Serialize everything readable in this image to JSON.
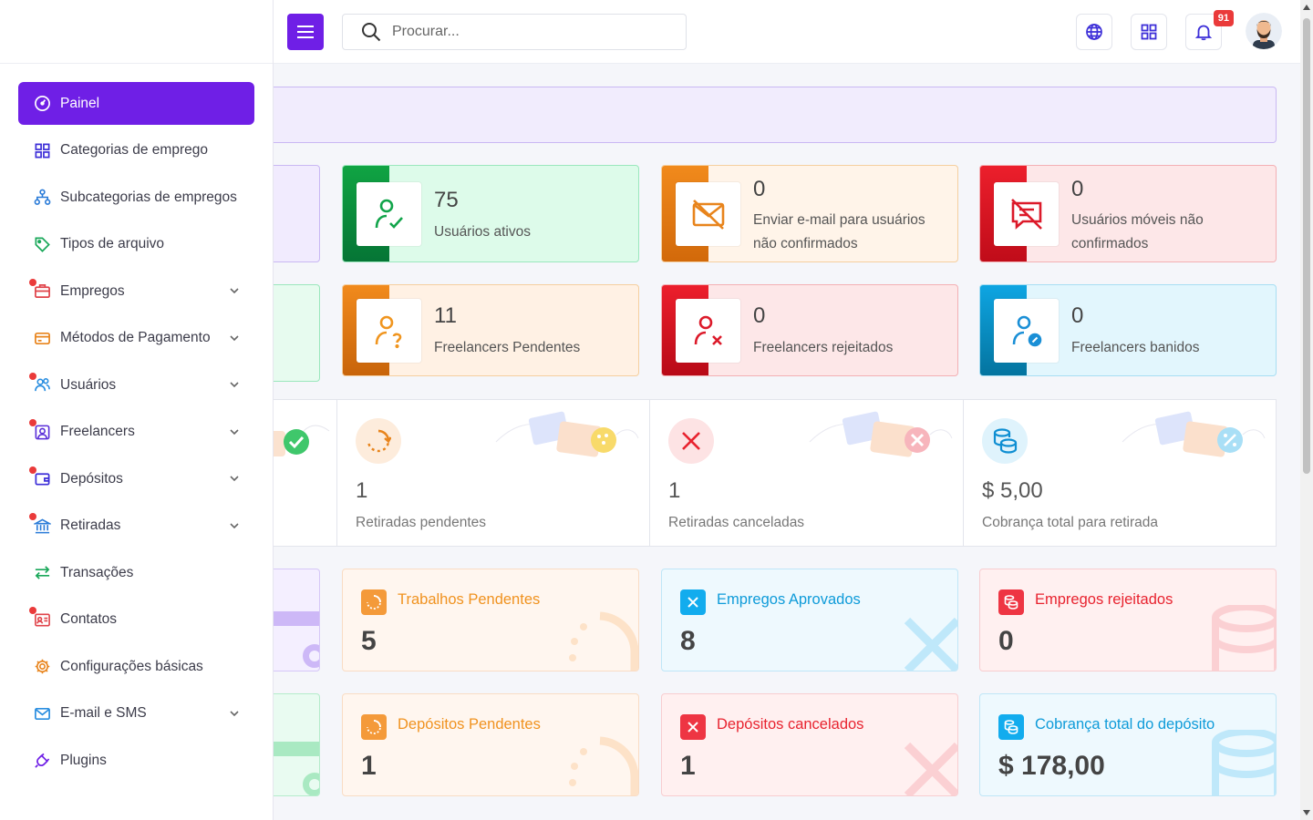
{
  "search": {
    "placeholder": "Procurar..."
  },
  "notifications": {
    "count": "91"
  },
  "sidebar": {
    "items": [
      {
        "label": "Painel",
        "icon": "dashboard-icon",
        "active": true,
        "dot": false,
        "chevron": false
      },
      {
        "label": "Categorias de emprego",
        "icon": "grid-icon",
        "dot": false,
        "chevron": false
      },
      {
        "label": "Subcategorias de empregos",
        "icon": "sitemap-icon",
        "dot": false,
        "chevron": false
      },
      {
        "label": "Tipos de arquivo",
        "icon": "tag-icon",
        "dot": false,
        "chevron": false
      },
      {
        "label": "Empregos",
        "icon": "briefcase-icon",
        "dot": true,
        "chevron": true
      },
      {
        "label": "Métodos de Pagamento",
        "icon": "credit-card-icon",
        "dot": false,
        "chevron": true
      },
      {
        "label": "Usuários",
        "icon": "users-icon",
        "dot": true,
        "chevron": true
      },
      {
        "label": "Freelancers",
        "icon": "freelancer-icon",
        "dot": true,
        "chevron": true
      },
      {
        "label": "Depósitos",
        "icon": "wallet-icon",
        "dot": true,
        "chevron": true
      },
      {
        "label": "Retiradas",
        "icon": "bank-icon",
        "dot": true,
        "chevron": true
      },
      {
        "label": "Transações",
        "icon": "transfer-icon",
        "dot": false,
        "chevron": false
      },
      {
        "label": "Contatos",
        "icon": "contact-card-icon",
        "dot": true,
        "chevron": false
      },
      {
        "label": "Configurações básicas",
        "icon": "gear-icon",
        "dot": false,
        "chevron": false
      },
      {
        "label": "E-mail e SMS",
        "icon": "mail-icon",
        "dot": false,
        "chevron": true
      },
      {
        "label": "Plugins",
        "icon": "plug-icon",
        "dot": false,
        "chevron": false
      }
    ]
  },
  "user_cards": [
    {
      "value": "75",
      "label": "Usuários ativos",
      "icon": "user-check-icon"
    },
    {
      "value": "0",
      "label": "Enviar e-mail para usuários não confirmados",
      "icon": "mail-off-icon"
    },
    {
      "value": "0",
      "label": "Usuários móveis não confirmados",
      "icon": "message-off-icon"
    },
    {
      "value": "11",
      "label": "Freelancers Pendentes",
      "icon": "user-question-icon"
    },
    {
      "value": "0",
      "label": "Freelancers rejeitados",
      "icon": "user-x-icon"
    },
    {
      "value": "0",
      "label": "Freelancers banidos",
      "icon": "user-ban-icon"
    }
  ],
  "withdrawals": [
    {
      "value": "1",
      "label": "Retiradas pendentes",
      "icon": "spinner-icon"
    },
    {
      "value": "1",
      "label": "Retiradas canceladas",
      "icon": "x-icon"
    },
    {
      "value": "$ 5,00",
      "label": "Cobrança total para retirada",
      "icon": "coins-icon"
    }
  ],
  "job_cards": [
    {
      "title": "Trabalhos Pendentes",
      "value": "5",
      "icon": "spinner-icon"
    },
    {
      "title": "Empregos Aprovados",
      "value": "8",
      "icon": "x-icon"
    },
    {
      "title": "Empregos rejeitados",
      "value": "0",
      "icon": "coins-icon"
    },
    {
      "title": "Depósitos Pendentes",
      "value": "1",
      "icon": "spinner-icon"
    },
    {
      "title": "Depósitos cancelados",
      "value": "1",
      "icon": "x-icon"
    },
    {
      "title": "Cobrança total do depósito",
      "value": "$ 178,00",
      "icon": "coins-icon"
    }
  ],
  "colors": {
    "primary": "#6f1fe6",
    "green": "#0a8a3a",
    "orange": "#e8841c",
    "red": "#dc1a2a",
    "blue": "#0a8fd0"
  }
}
